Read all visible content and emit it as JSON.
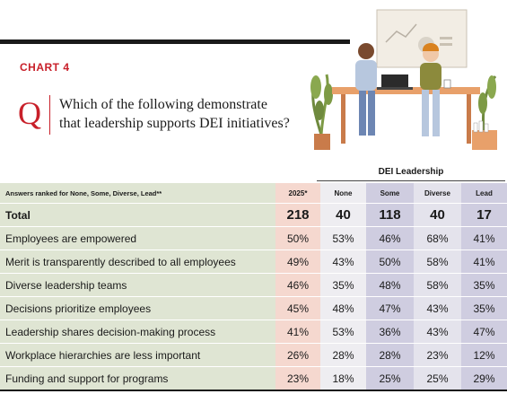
{
  "header": {
    "chart_label": "CHART 4",
    "q_mark": "Q",
    "question_line1": "Which of the following demonstrate",
    "question_line2": "that leadership supports DEI initiatives?"
  },
  "table": {
    "group_label": "DEI Leadership",
    "columns": [
      "Answers ranked for None, Some, Diverse, Lead**",
      "2025*",
      "None",
      "Some",
      "Diverse",
      "Lead"
    ],
    "rows": [
      {
        "label": "Total",
        "values": [
          "218",
          "40",
          "118",
          "40",
          "17"
        ]
      },
      {
        "label": "Employees are empowered",
        "values": [
          "50%",
          "53%",
          "46%",
          "68%",
          "41%"
        ]
      },
      {
        "label": "Merit is transparently described to all employees",
        "values": [
          "49%",
          "43%",
          "50%",
          "58%",
          "41%"
        ]
      },
      {
        "label": "Diverse leadership teams",
        "values": [
          "46%",
          "35%",
          "48%",
          "58%",
          "35%"
        ]
      },
      {
        "label": "Decisions prioritize employees",
        "values": [
          "45%",
          "48%",
          "47%",
          "43%",
          "35%"
        ]
      },
      {
        "label": "Leadership shares decision-making process",
        "values": [
          "41%",
          "53%",
          "36%",
          "43%",
          "47%"
        ]
      },
      {
        "label": "Workplace hierarchies are less important",
        "values": [
          "26%",
          "28%",
          "28%",
          "23%",
          "12%"
        ]
      },
      {
        "label": "Funding and support for programs",
        "values": [
          "23%",
          "18%",
          "25%",
          "25%",
          "29%"
        ]
      }
    ]
  },
  "colors": {
    "accent_red": "#c8202a",
    "label_col_bg": "#dfe5d3",
    "col_2025_bg": "#f5d8cf",
    "col_light_bg": "#eeedf1",
    "col_dark_bg": "#cfcde0"
  }
}
